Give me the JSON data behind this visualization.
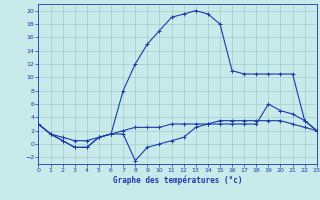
{
  "title": "Graphe des températures (°c)",
  "background_color": "#c8eaea",
  "grid_color": "#a0cccc",
  "line_color": "#1a3aaa",
  "xlim": [
    0,
    23
  ],
  "ylim": [
    -3,
    21
  ],
  "xticks": [
    0,
    1,
    2,
    3,
    4,
    5,
    6,
    7,
    8,
    9,
    10,
    11,
    12,
    13,
    14,
    15,
    16,
    17,
    18,
    19,
    20,
    21,
    22,
    23
  ],
  "yticks": [
    -2,
    0,
    2,
    4,
    6,
    8,
    10,
    12,
    14,
    16,
    18,
    20
  ],
  "line1_x": [
    0,
    1,
    2,
    3,
    4,
    5,
    6,
    7,
    8,
    9,
    10,
    11,
    12,
    13,
    14,
    15,
    16,
    17,
    18,
    19,
    20,
    21,
    22,
    23
  ],
  "line1_y": [
    3.0,
    1.5,
    1.0,
    0.5,
    0.5,
    1.0,
    1.5,
    2.0,
    2.5,
    2.5,
    2.5,
    3.0,
    3.0,
    3.0,
    3.0,
    3.5,
    3.5,
    3.5,
    3.5,
    3.5,
    3.5,
    3.0,
    2.5,
    2.0
  ],
  "line2_x": [
    0,
    1,
    2,
    3,
    4,
    5,
    6,
    7,
    8,
    9,
    10,
    11,
    12,
    13,
    14,
    15,
    16,
    17,
    18,
    19,
    20,
    21,
    22,
    23
  ],
  "line2_y": [
    3.0,
    1.5,
    0.5,
    -0.5,
    -0.5,
    1.0,
    1.5,
    1.5,
    -2.5,
    -0.5,
    0.0,
    0.5,
    1.0,
    2.5,
    3.0,
    3.0,
    3.0,
    3.0,
    3.0,
    6.0,
    5.0,
    4.5,
    3.5,
    2.0
  ],
  "line3_x": [
    0,
    1,
    2,
    3,
    4,
    5,
    6,
    7,
    8,
    9,
    10,
    11,
    12,
    13,
    14,
    15,
    16,
    17,
    18,
    19,
    20,
    21,
    22,
    23
  ],
  "line3_y": [
    3.0,
    1.5,
    0.5,
    -0.5,
    -0.5,
    1.0,
    1.5,
    8.0,
    12.0,
    15.0,
    17.0,
    19.0,
    19.5,
    20.0,
    19.5,
    18.0,
    11.0,
    10.5,
    10.5,
    10.5,
    10.5,
    10.5,
    3.5,
    2.0
  ]
}
